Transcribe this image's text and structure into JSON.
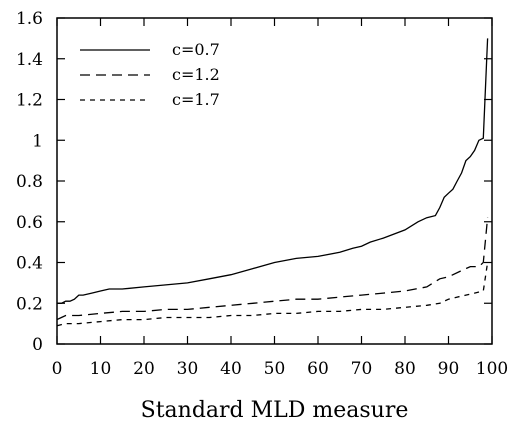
{
  "chart_data": {
    "type": "line",
    "title": "",
    "xlabel": "Standard MLD measure",
    "ylabel": "",
    "xlim": [
      0,
      100
    ],
    "ylim": [
      0,
      1.6
    ],
    "x_ticks": [
      0,
      10,
      20,
      30,
      40,
      50,
      60,
      70,
      80,
      90,
      100
    ],
    "y_ticks": [
      0,
      0.2,
      0.4,
      0.6,
      0.8,
      1,
      1.2,
      1.4,
      1.6
    ],
    "y_tick_labels": [
      "0",
      "0.2",
      "0.4",
      "0.6",
      "0.8",
      "1",
      "1.2",
      "1.4",
      "1.6"
    ],
    "grid": false,
    "legend_position": "top-left",
    "series": [
      {
        "name": "c=0.7",
        "dash": "solid",
        "color": "#000000",
        "x": [
          0,
          1,
          2,
          3,
          4,
          5,
          6,
          8,
          10,
          12,
          15,
          20,
          25,
          30,
          35,
          40,
          45,
          50,
          55,
          60,
          65,
          68,
          70,
          72,
          75,
          80,
          83,
          85,
          87,
          88,
          89,
          90,
          91,
          92,
          93,
          94,
          95,
          96,
          97,
          98,
          99
        ],
        "y": [
          0.2,
          0.2,
          0.21,
          0.21,
          0.22,
          0.24,
          0.24,
          0.25,
          0.26,
          0.27,
          0.27,
          0.28,
          0.29,
          0.3,
          0.32,
          0.34,
          0.37,
          0.4,
          0.42,
          0.43,
          0.45,
          0.47,
          0.48,
          0.5,
          0.52,
          0.56,
          0.6,
          0.62,
          0.63,
          0.67,
          0.72,
          0.74,
          0.76,
          0.8,
          0.84,
          0.9,
          0.92,
          0.95,
          1.0,
          1.01,
          1.5
        ]
      },
      {
        "name": "c=1.2",
        "dash": "long-dash",
        "color": "#000000",
        "x": [
          0,
          1,
          2,
          5,
          10,
          15,
          20,
          25,
          30,
          35,
          40,
          45,
          50,
          55,
          60,
          65,
          70,
          75,
          80,
          85,
          88,
          90,
          93,
          95,
          97,
          98,
          99
        ],
        "y": [
          0.12,
          0.13,
          0.14,
          0.14,
          0.15,
          0.16,
          0.16,
          0.17,
          0.17,
          0.18,
          0.19,
          0.2,
          0.21,
          0.22,
          0.22,
          0.23,
          0.24,
          0.25,
          0.26,
          0.28,
          0.32,
          0.33,
          0.36,
          0.38,
          0.38,
          0.4,
          0.62
        ]
      },
      {
        "name": "c=1.7",
        "dash": "short-dash",
        "color": "#000000",
        "x": [
          0,
          2,
          5,
          10,
          15,
          20,
          25,
          30,
          35,
          40,
          45,
          50,
          55,
          60,
          65,
          70,
          75,
          80,
          85,
          88,
          90,
          92,
          94,
          96,
          98,
          99
        ],
        "y": [
          0.09,
          0.1,
          0.1,
          0.11,
          0.12,
          0.12,
          0.13,
          0.13,
          0.13,
          0.14,
          0.14,
          0.15,
          0.15,
          0.16,
          0.16,
          0.17,
          0.17,
          0.18,
          0.19,
          0.2,
          0.22,
          0.23,
          0.24,
          0.25,
          0.26,
          0.4
        ]
      }
    ]
  }
}
